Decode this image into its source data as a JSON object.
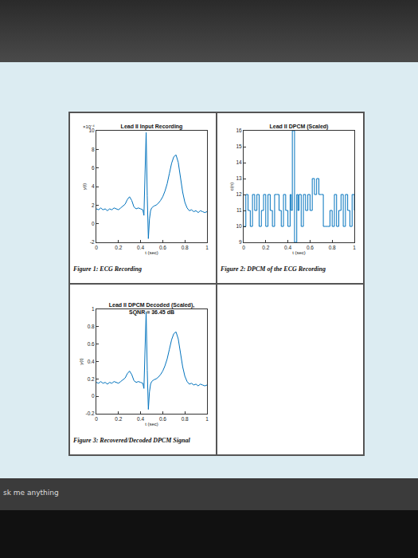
{
  "chart_data": [
    {
      "type": "line",
      "title": "Lead II Input Recording",
      "caption": "Figure 1: ECG Recording",
      "x_label": "t (sec)",
      "y_label": "y(t)",
      "annotations": [
        "×10⁻⁴"
      ],
      "color": "#0072bd",
      "line_style": "solid",
      "grid": false,
      "x": [
        0,
        0.02,
        0.04,
        0.06,
        0.08,
        0.1,
        0.12,
        0.14,
        0.16,
        0.18,
        0.2,
        0.22,
        0.24,
        0.26,
        0.28,
        0.3,
        0.32,
        0.34,
        0.36,
        0.38,
        0.4,
        0.42,
        0.43,
        0.44,
        0.45,
        0.46,
        0.47,
        0.48,
        0.49,
        0.5,
        0.52,
        0.54,
        0.56,
        0.58,
        0.6,
        0.62,
        0.64,
        0.66,
        0.68,
        0.7,
        0.72,
        0.74,
        0.76,
        0.78,
        0.8,
        0.82,
        0.84,
        0.86,
        0.88,
        0.9,
        0.92,
        0.94,
        0.96,
        0.98,
        1.0
      ],
      "values": [
        1.6,
        1.5,
        1.7,
        1.5,
        1.6,
        1.4,
        1.6,
        1.5,
        1.7,
        1.6,
        1.5,
        1.7,
        1.9,
        2.1,
        2.6,
        2.9,
        2.5,
        1.8,
        1.6,
        1.7,
        1.6,
        1.5,
        0.9,
        4.5,
        9.8,
        3.0,
        -1.6,
        0.5,
        1.4,
        1.7,
        1.9,
        2.0,
        2.2,
        2.5,
        2.9,
        3.5,
        4.3,
        5.4,
        6.5,
        7.2,
        7.4,
        6.6,
        5.0,
        3.4,
        2.3,
        1.7,
        1.4,
        1.5,
        1.3,
        1.4,
        1.2,
        1.4,
        1.3,
        1.2,
        1.3
      ],
      "xlim": [
        0,
        1
      ],
      "xticks": [
        0,
        0.2,
        0.4,
        0.6,
        0.8,
        1
      ],
      "ylim": [
        -2,
        10
      ],
      "yticks": [
        -2,
        0,
        2,
        4,
        6,
        8,
        10
      ]
    },
    {
      "type": "line",
      "title": "Lead II DPCM (Scaled)",
      "caption": "Figure 2: DPCM of the ECG Recording",
      "x_label": "t (sec)",
      "y_label": "c(n)",
      "color": "#0072bd",
      "line_style": "step",
      "grid": false,
      "x": [
        0,
        0.02,
        0.04,
        0.06,
        0.08,
        0.1,
        0.12,
        0.14,
        0.16,
        0.18,
        0.2,
        0.22,
        0.24,
        0.26,
        0.28,
        0.3,
        0.32,
        0.34,
        0.36,
        0.38,
        0.4,
        0.42,
        0.43,
        0.44,
        0.45,
        0.46,
        0.47,
        0.48,
        0.49,
        0.5,
        0.52,
        0.54,
        0.56,
        0.58,
        0.6,
        0.62,
        0.64,
        0.66,
        0.68,
        0.7,
        0.72,
        0.74,
        0.76,
        0.78,
        0.8,
        0.82,
        0.84,
        0.86,
        0.88,
        0.9,
        0.92,
        0.94,
        0.96,
        0.98,
        1.0
      ],
      "values": [
        10,
        12,
        11,
        10,
        12,
        11,
        12,
        10,
        11,
        12,
        10,
        12,
        11,
        10,
        12,
        12,
        11,
        10,
        12,
        11,
        10,
        12,
        11,
        16,
        16,
        9,
        9,
        12,
        11,
        12,
        10,
        12,
        11,
        12,
        11,
        13,
        12,
        13,
        12,
        12,
        10,
        10,
        10,
        11,
        10,
        12,
        10,
        11,
        12,
        10,
        12,
        11,
        10,
        12,
        11
      ],
      "xlim": [
        0,
        1
      ],
      "xticks": [
        0,
        0.2,
        0.4,
        0.6,
        0.8,
        1
      ],
      "ylim": [
        9,
        16
      ],
      "yticks": [
        9,
        10,
        11,
        12,
        13,
        14,
        15,
        16
      ]
    },
    {
      "type": "line",
      "title": "Lead II DPCM Decoded (Scaled), SQNR = 36.45 dB",
      "caption": "Figure 3: Recovered/Decoded DPCM Signal",
      "x_label": "t (sec)",
      "y_label": "y(t)",
      "color": "#0072bd",
      "line_style": "solid",
      "grid": false,
      "x": [
        0,
        0.02,
        0.04,
        0.06,
        0.08,
        0.1,
        0.12,
        0.14,
        0.16,
        0.18,
        0.2,
        0.22,
        0.24,
        0.26,
        0.28,
        0.3,
        0.32,
        0.34,
        0.36,
        0.38,
        0.4,
        0.42,
        0.43,
        0.44,
        0.45,
        0.46,
        0.47,
        0.48,
        0.49,
        0.5,
        0.52,
        0.54,
        0.56,
        0.58,
        0.6,
        0.62,
        0.64,
        0.66,
        0.68,
        0.7,
        0.72,
        0.74,
        0.76,
        0.78,
        0.8,
        0.82,
        0.84,
        0.86,
        0.88,
        0.9,
        0.92,
        0.94,
        0.96,
        0.98,
        1.0
      ],
      "values": [
        0.16,
        0.15,
        0.17,
        0.15,
        0.16,
        0.14,
        0.16,
        0.15,
        0.17,
        0.16,
        0.15,
        0.17,
        0.19,
        0.21,
        0.26,
        0.29,
        0.25,
        0.18,
        0.16,
        0.17,
        0.16,
        0.15,
        0.09,
        0.45,
        0.97,
        0.3,
        -0.15,
        0.05,
        0.14,
        0.17,
        0.19,
        0.2,
        0.22,
        0.25,
        0.29,
        0.35,
        0.43,
        0.54,
        0.65,
        0.72,
        0.74,
        0.66,
        0.5,
        0.34,
        0.23,
        0.17,
        0.14,
        0.15,
        0.13,
        0.14,
        0.12,
        0.14,
        0.13,
        0.12,
        0.13
      ],
      "xlim": [
        0,
        1
      ],
      "xticks": [
        0,
        0.2,
        0.4,
        0.6,
        0.8,
        1
      ],
      "ylim": [
        -0.2,
        1
      ],
      "yticks": [
        -0.2,
        0,
        0.2,
        0.4,
        0.6,
        0.8,
        1
      ]
    }
  ],
  "taskbar": {
    "search": "sk me anything"
  }
}
